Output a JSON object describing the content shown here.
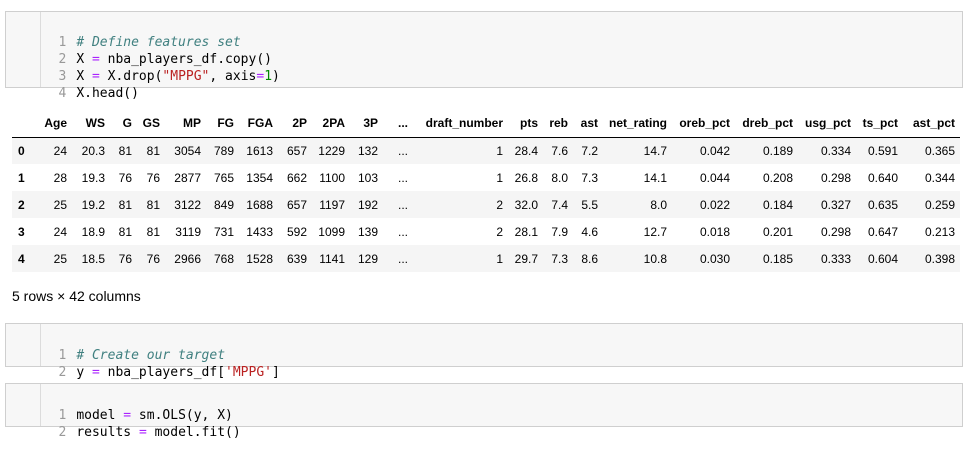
{
  "cell1": {
    "lines": [
      {
        "n": "1",
        "t": "# Define features set"
      },
      {
        "n": "2",
        "a": "X ",
        "b": "=",
        "c": " nba_players_df.copy()"
      },
      {
        "n": "3",
        "a": "X ",
        "b": "=",
        "c": " X.drop(",
        "d": "\"MPPG\"",
        "e": ", axis",
        "f": "=",
        "g": "1",
        "h": ")"
      },
      {
        "n": "4",
        "a": "X.head()"
      }
    ]
  },
  "dataframe": {
    "columns": [
      "",
      "Age",
      "WS",
      "G",
      "GS",
      "MP",
      "FG",
      "FGA",
      "2P",
      "2PA",
      "3P",
      "...",
      "draft_number",
      "pts",
      "reb",
      "ast",
      "net_rating",
      "oreb_pct",
      "dreb_pct",
      "usg_pct",
      "ts_pct",
      "ast_pct"
    ],
    "rows": [
      [
        "0",
        "24",
        "20.3",
        "81",
        "81",
        "3054",
        "789",
        "1613",
        "657",
        "1229",
        "132",
        "...",
        "1",
        "28.4",
        "7.6",
        "7.2",
        "14.7",
        "0.042",
        "0.189",
        "0.334",
        "0.591",
        "0.365"
      ],
      [
        "1",
        "28",
        "19.3",
        "76",
        "76",
        "2877",
        "765",
        "1354",
        "662",
        "1100",
        "103",
        "...",
        "1",
        "26.8",
        "8.0",
        "7.3",
        "14.1",
        "0.044",
        "0.208",
        "0.298",
        "0.640",
        "0.344"
      ],
      [
        "2",
        "25",
        "19.2",
        "81",
        "81",
        "3122",
        "849",
        "1688",
        "657",
        "1197",
        "192",
        "...",
        "2",
        "32.0",
        "7.4",
        "5.5",
        "8.0",
        "0.022",
        "0.184",
        "0.327",
        "0.635",
        "0.259"
      ],
      [
        "3",
        "24",
        "18.9",
        "81",
        "81",
        "3119",
        "731",
        "1433",
        "592",
        "1099",
        "139",
        "...",
        "2",
        "28.1",
        "7.9",
        "4.6",
        "12.7",
        "0.018",
        "0.201",
        "0.298",
        "0.647",
        "0.213"
      ],
      [
        "4",
        "25",
        "18.5",
        "76",
        "76",
        "2966",
        "768",
        "1528",
        "639",
        "1141",
        "129",
        "...",
        "1",
        "29.7",
        "7.3",
        "8.6",
        "10.8",
        "0.030",
        "0.185",
        "0.333",
        "0.604",
        "0.398"
      ]
    ],
    "shape_text": "5 rows × 42 columns"
  },
  "cell2": {
    "lines": [
      {
        "n": "1",
        "t": "# Create our target"
      },
      {
        "n": "2",
        "a": "y ",
        "b": "=",
        "c": " nba_players_df[",
        "d": "'MPPG'",
        "e": "]"
      }
    ]
  },
  "cell3": {
    "lines": [
      {
        "n": "1",
        "a": "model ",
        "b": "=",
        "c": " sm.OLS(y, X)"
      },
      {
        "n": "2",
        "a": "results ",
        "b": "=",
        "c": " model.fit()"
      }
    ]
  }
}
